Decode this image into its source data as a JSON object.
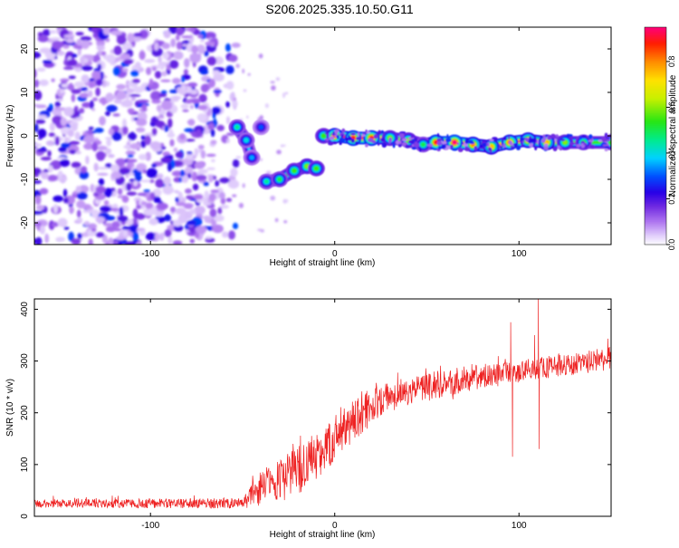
{
  "page": {
    "title": "S206.2025.335.10.50.G11"
  },
  "chart_data": [
    {
      "id": "spectrogram",
      "type": "heatmap",
      "xlabel": "Height of straight line (km)",
      "ylabel": "Frequency (Hz)",
      "xlim": [
        -163,
        150
      ],
      "ylim": [
        -25,
        25
      ],
      "xticks": [
        -100,
        0,
        100
      ],
      "xtick_labels": [
        "-100",
        "0",
        "100"
      ],
      "yticks": [
        20,
        10,
        0,
        -10,
        -20
      ],
      "ytick_labels": [
        "20",
        "10",
        "0",
        "-10",
        "-20"
      ],
      "colorbar": {
        "label": "Normalized spectral amplitude",
        "range": [
          0,
          0.95
        ],
        "ticks": [
          0.0,
          0.2,
          0.4,
          0.6,
          0.8
        ],
        "tick_labels": [
          "0.0",
          "0.2",
          "0.4",
          "0.6",
          "0.8"
        ]
      },
      "noise_region": {
        "x": [
          -163,
          -55
        ],
        "amplitude": [
          0.05,
          0.3
        ]
      },
      "ridge": [
        {
          "x": -53,
          "y": 2,
          "amp": 0.45
        },
        {
          "x": -48,
          "y": -1,
          "amp": 0.4
        },
        {
          "x": -45,
          "y": -5,
          "amp": 0.35
        },
        {
          "x": -40,
          "y": 2,
          "amp": 0.3
        },
        {
          "x": -37,
          "y": -10.5,
          "amp": 0.45
        },
        {
          "x": -30,
          "y": -10,
          "amp": 0.5
        },
        {
          "x": -22,
          "y": -8,
          "amp": 0.55
        },
        {
          "x": -15,
          "y": -7,
          "amp": 0.6
        },
        {
          "x": -10,
          "y": -7.5,
          "amp": 0.55
        },
        {
          "x": -6,
          "y": 0,
          "amp": 0.55
        },
        {
          "x": 0,
          "y": 0,
          "amp": 0.85
        },
        {
          "x": 10,
          "y": -0.5,
          "amp": 0.9
        },
        {
          "x": 20,
          "y": -0.5,
          "amp": 0.9
        },
        {
          "x": 30,
          "y": -0.5,
          "amp": 0.6
        },
        {
          "x": 40,
          "y": -1,
          "amp": 0.6
        },
        {
          "x": 48,
          "y": -2,
          "amp": 0.5
        },
        {
          "x": 55,
          "y": -1.5,
          "amp": 0.9
        },
        {
          "x": 65,
          "y": -1.5,
          "amp": 0.95
        },
        {
          "x": 75,
          "y": -2,
          "amp": 0.8
        },
        {
          "x": 85,
          "y": -2.5,
          "amp": 0.75
        },
        {
          "x": 95,
          "y": -1.5,
          "amp": 0.85
        },
        {
          "x": 105,
          "y": -1,
          "amp": 0.8
        },
        {
          "x": 115,
          "y": -1.5,
          "amp": 0.75
        },
        {
          "x": 125,
          "y": -1.5,
          "amp": 0.6
        },
        {
          "x": 135,
          "y": -1.5,
          "amp": 0.55
        },
        {
          "x": 150,
          "y": -1.5,
          "amp": 0.55
        }
      ]
    },
    {
      "id": "snr",
      "type": "line",
      "xlabel": "Height of straight line (km)",
      "ylabel": "SNR (10 * v/v)",
      "xlim": [
        -163,
        150
      ],
      "ylim": [
        0,
        420
      ],
      "xticks": [
        -100,
        0,
        100
      ],
      "xtick_labels": [
        "-100",
        "0",
        "100"
      ],
      "yticks": [
        0,
        100,
        200,
        300,
        400
      ],
      "ytick_labels": [
        "0",
        "100",
        "200",
        "300",
        "400"
      ],
      "color": "#ee2222",
      "trend": {
        "x": [
          -163,
          -100,
          -50,
          -45,
          -40,
          -30,
          -20,
          -10,
          0,
          10,
          20,
          30,
          50,
          70,
          90,
          110,
          130,
          150
        ],
        "y": [
          25,
          25,
          25,
          40,
          55,
          70,
          90,
          120,
          150,
          185,
          210,
          230,
          250,
          265,
          275,
          285,
          295,
          305
        ]
      },
      "noise_amplitude": {
        "x": [
          -163,
          -50,
          -40,
          -20,
          0,
          30,
          100,
          150
        ],
        "y": [
          8,
          10,
          35,
          50,
          45,
          30,
          22,
          22
        ]
      },
      "spikes": [
        {
          "x": 95.5,
          "y": 375
        },
        {
          "x": 96.5,
          "y": 115
        },
        {
          "x": 108.5,
          "y": 350
        },
        {
          "x": 110.5,
          "y": 420
        },
        {
          "x": 111,
          "y": 130
        }
      ]
    }
  ]
}
